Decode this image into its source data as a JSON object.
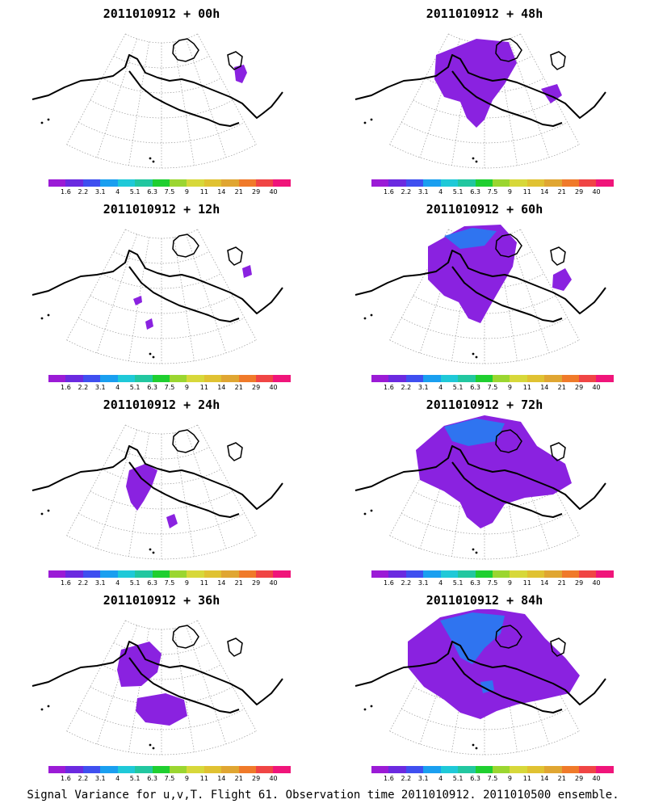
{
  "panels": [
    {
      "title": "2011010912 + 00h",
      "level": 0
    },
    {
      "title": "2011010912 + 48h",
      "level": 4
    },
    {
      "title": "2011010912 + 12h",
      "level": 1
    },
    {
      "title": "2011010912 + 60h",
      "level": 5
    },
    {
      "title": "2011010912 + 24h",
      "level": 2
    },
    {
      "title": "2011010912 + 72h",
      "level": 6
    },
    {
      "title": "2011010912 + 36h",
      "level": 3
    },
    {
      "title": "2011010912 + 84h",
      "level": 7
    }
  ],
  "colorbar": {
    "labels": [
      "1.6",
      "2.2",
      "3.1",
      "4",
      "5.1",
      "6.3",
      "7.5",
      "9",
      "11",
      "14",
      "21",
      "29",
      "40"
    ],
    "colors": [
      "#9b1bd6",
      "#6b2ae0",
      "#3f4ff0",
      "#1a9ff0",
      "#1fc9d8",
      "#22c7a0",
      "#1fcf30",
      "#9bd630",
      "#d7d83a",
      "#e0c232",
      "#e0a632",
      "#f07a2a",
      "#f04545",
      "#f0157a"
    ]
  },
  "footer": "Signal Variance for u,v,T. Flight 61. Observation time 2011010912. 2011010500 ensemble."
}
